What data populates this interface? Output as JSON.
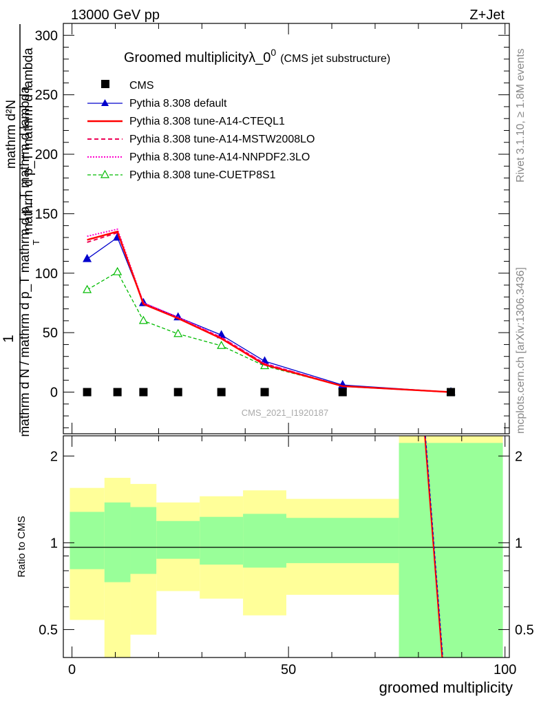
{
  "header": {
    "energy": "13000 GeV pp",
    "process": "Z+Jet"
  },
  "rivet_label": "Rivet 3.1.10, ≥ 1.8M events",
  "mcplots_label": "mcplots.cern.ch [arXiv:1306.3436]",
  "analysis_id": "CMS_2021_I1920187",
  "colors": {
    "cms": "#000000",
    "default": "#0000cc",
    "cteql1": "#ff0000",
    "mstw": "#ee0055",
    "nnpdf": "#ff00cc",
    "cuetp8s1": "#00bb00",
    "band_inner": "#99ff99",
    "band_outer": "#ffff99"
  },
  "chart_data": [
    {
      "type": "line",
      "title_main": "Groomed multiplicityλ_0",
      "title_sup": "0",
      "title_sub": "(CMS jet substructure)",
      "ylabel_numerator": "1",
      "ylabel_top": "mathrm d²N",
      "ylabel_mid": "mathrm d p_T mathrm d lambda",
      "ylabel_sub": "T",
      "ylabel_denominator": "mathrm d N / mathrm d p_T mathrm d p_T mathrm d lambda",
      "xlim": [
        -2,
        101
      ],
      "ylim": [
        -35,
        310
      ],
      "yticks": [
        0,
        50,
        100,
        150,
        200,
        250,
        300
      ],
      "x": [
        3.5,
        10.5,
        16.5,
        24.5,
        34.5,
        44.5,
        62.5,
        87.5
      ],
      "series": [
        {
          "name": "CMS",
          "style": "marker",
          "color_key": "cms",
          "values": [
            0,
            0,
            0,
            0,
            0,
            0,
            0,
            0
          ]
        },
        {
          "name": "Pythia 8.308 default",
          "style": "line-triangle",
          "color_key": "default",
          "values": [
            112,
            130,
            75,
            63,
            48,
            26,
            6,
            0
          ]
        },
        {
          "name": "Pythia 8.308 tune-A14-CTEQL1",
          "style": "solid",
          "color_key": "cteql1",
          "values": [
            128,
            135,
            74,
            62,
            45,
            23,
            5,
            0
          ]
        },
        {
          "name": "Pythia 8.308 tune-A14-MSTW2008LO",
          "style": "dashed",
          "color_key": "mstw",
          "values": [
            126,
            134,
            75,
            62,
            46,
            24,
            5,
            0
          ]
        },
        {
          "name": "Pythia 8.308 tune-A14-NNPDF2.3LO",
          "style": "dotted",
          "color_key": "nnpdf",
          "values": [
            131,
            137,
            75,
            63,
            46,
            24,
            5,
            0
          ]
        },
        {
          "name": "Pythia 8.308 tune-CUETP8S1",
          "style": "dashed-open-triangle",
          "color_key": "cuetp8s1",
          "values": [
            86,
            101,
            60,
            49,
            39,
            22,
            5,
            0
          ]
        }
      ]
    },
    {
      "type": "area",
      "ylabel": "Ratio to CMS",
      "xlabel": "groomed multiplicity",
      "xlim": [
        -2,
        101
      ],
      "xticks": [
        0,
        50,
        100
      ],
      "ylim": [
        0.4,
        2.35
      ],
      "log_y": true,
      "yticks": [
        0.5,
        1,
        2
      ],
      "bins": [
        {
          "lo": -0.5,
          "hi": 7.5,
          "inner": [
            0.81,
            1.28
          ],
          "outer": [
            0.54,
            1.55
          ]
        },
        {
          "lo": 7.5,
          "hi": 13.5,
          "inner": [
            0.73,
            1.38
          ],
          "outer": [
            0.3,
            1.68
          ]
        },
        {
          "lo": 13.5,
          "hi": 19.5,
          "inner": [
            0.78,
            1.33
          ],
          "outer": [
            0.48,
            1.6
          ]
        },
        {
          "lo": 19.5,
          "hi": 29.5,
          "inner": [
            0.88,
            1.19
          ],
          "outer": [
            0.68,
            1.38
          ]
        },
        {
          "lo": 29.5,
          "hi": 39.5,
          "inner": [
            0.84,
            1.23
          ],
          "outer": [
            0.64,
            1.45
          ]
        },
        {
          "lo": 39.5,
          "hi": 49.5,
          "inner": [
            0.82,
            1.26
          ],
          "outer": [
            0.56,
            1.52
          ]
        },
        {
          "lo": 49.5,
          "hi": 75.5,
          "inner": [
            0.85,
            1.22
          ],
          "outer": [
            0.66,
            1.42
          ]
        },
        {
          "lo": 75.5,
          "hi": 99.5,
          "inner": [
            0.3,
            2.22
          ],
          "outer": [
            0.3,
            2.5
          ]
        }
      ],
      "ratio_line": {
        "x": [
          81.5,
          85.5
        ],
        "y": [
          2.35,
          0.4
        ]
      }
    }
  ]
}
